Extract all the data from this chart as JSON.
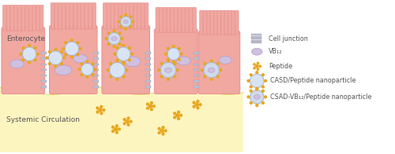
{
  "bg_color": "#ffffff",
  "cell_color": "#f0a8a0",
  "cell_edge": "#e89090",
  "cell_light": "#f8c8c0",
  "systemic_color": "#fdf5c0",
  "systemic_edge": "#e8d870",
  "junction_color": "#c0c0d0",
  "junction_edge": "#a0a0b8",
  "vb12_fill": "#d0c0e0",
  "vb12_edge": "#b0a0cc",
  "peptide_color": "#e8a820",
  "casd_outer": "#a8b8d8",
  "casd_fill": "#d8e4f4",
  "casd_dots": "#e8a820",
  "casdvb_outer": "#a8b8d0",
  "casdvb_fill": "#d0daea",
  "label_color": "#555555",
  "enterocyte_label": "Enterocyte",
  "systemic_label": "Systemic Circulation",
  "legend_items": [
    "Cell junction",
    "VB₁₂",
    "Peptide",
    "CASD/Peptide nanoparticle",
    "CSAD-VB₁₂/Peptide nanoparticle"
  ],
  "villi_color": "#e89090"
}
